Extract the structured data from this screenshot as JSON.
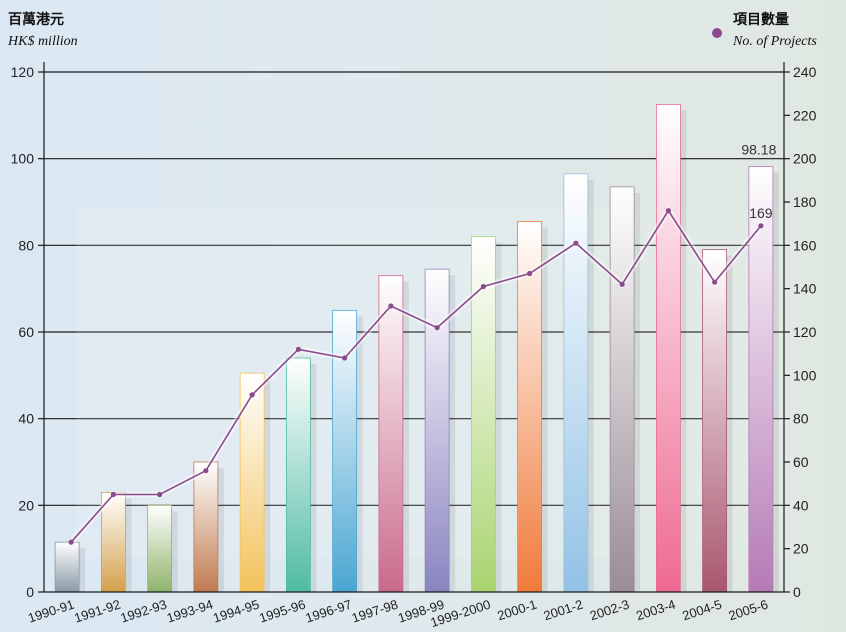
{
  "chart_data": {
    "type": "bar",
    "categories": [
      "1990-91",
      "1991-92",
      "1992-93",
      "1993-94",
      "1994-95",
      "1995-96",
      "1996-97",
      "1997-98",
      "1998-99",
      "1999-2000",
      "2000-1",
      "2001-2",
      "2002-3",
      "2003-4",
      "2004-5",
      "2005-6"
    ],
    "series": [
      {
        "values": [
          11.5,
          23,
          20,
          30,
          50.5,
          54,
          65,
          73,
          74.5,
          82,
          85.5,
          96.5,
          93.5,
          112.5,
          79,
          98.18
        ],
        "axis": "left",
        "colors": [
          "#8a9ba6",
          "#d4a04a",
          "#8fb36a",
          "#c07a4e",
          "#f2c25a",
          "#4fbba3",
          "#4aa6d2",
          "#c96a8c",
          "#8a84c0",
          "#a9d470",
          "#f07a3a",
          "#92c2e6",
          "#9a8c96",
          "#ee6a92",
          "#a8566e",
          "#b57ab5"
        ]
      },
      {
        "name": "No. of Projects",
        "values": [
          23,
          45,
          45,
          56,
          91,
          112,
          108,
          132,
          122,
          141,
          147,
          161,
          142,
          176,
          143,
          169
        ],
        "axis": "right",
        "color": "#8a4a8c"
      }
    ],
    "left_axis": {
      "label_zh": "百萬港元",
      "label_en": "HK$ million",
      "ylim": [
        0,
        120
      ],
      "ticks": [
        0,
        20,
        40,
        60,
        80,
        100,
        120
      ]
    },
    "right_axis": {
      "label_zh": "項目數量",
      "label_en": "No. of Projects",
      "ylim": [
        0,
        240
      ],
      "ticks": [
        0,
        20,
        40,
        60,
        80,
        100,
        120,
        140,
        160,
        180,
        200,
        220,
        240
      ]
    },
    "legend": {
      "label_zh": "項目數量",
      "label_en": "No. of Projects",
      "position": "top-right"
    },
    "data_labels": {
      "bar_last": "98.18",
      "line_last": "169"
    },
    "grid": true
  }
}
